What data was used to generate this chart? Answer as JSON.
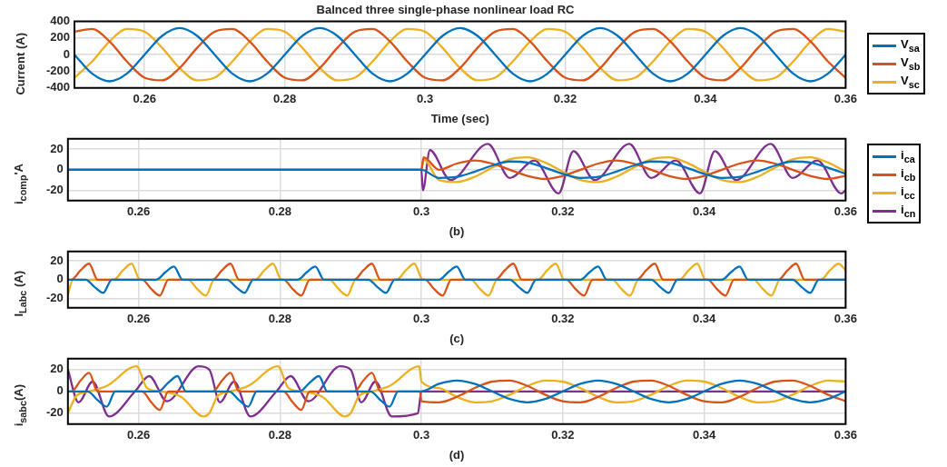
{
  "chart_data": [
    {
      "type": "line",
      "title": "Balnced three single-phase nonlinear load RC",
      "xlabel": "Time (sec)",
      "ylabel": "Current (A)",
      "x": [
        0.25,
        0.2525,
        0.255,
        0.2575,
        0.26,
        0.2625,
        0.265,
        0.2675,
        0.27,
        0.2725,
        0.275,
        0.2775,
        0.28,
        0.2825,
        0.285,
        0.2875,
        0.29,
        0.2925,
        0.295,
        0.2975,
        0.3,
        0.3025,
        0.305,
        0.3075,
        0.31,
        0.3125,
        0.315,
        0.3175,
        0.32,
        0.3225,
        0.325,
        0.3275,
        0.33,
        0.3325,
        0.335,
        0.3375,
        0.34,
        0.3425,
        0.345,
        0.3475,
        0.35,
        0.3525,
        0.355,
        0.3575,
        0.36
      ],
      "series": [
        {
          "name": "V$_{sa}$",
          "color": "#0072bd",
          "values": [
            0,
            -226,
            -320,
            -226,
            0,
            226,
            320,
            226,
            0,
            -226,
            -320,
            -226,
            0,
            226,
            320,
            226,
            0,
            -226,
            -320,
            -226,
            0,
            226,
            320,
            226,
            0,
            -226,
            -320,
            -226,
            0,
            226,
            320,
            226,
            0,
            -226,
            -320,
            -226,
            0,
            226,
            320,
            226,
            0,
            -226,
            -320,
            -226,
            0
          ]
        },
        {
          "name": "V$_{sb}$",
          "color": "#d95319",
          "values": [
            277,
            309,
            160,
            -83,
            -277,
            -309,
            -160,
            83,
            277,
            309,
            160,
            -83,
            -277,
            -309,
            -160,
            83,
            277,
            309,
            160,
            -83,
            -277,
            -309,
            -160,
            83,
            277,
            309,
            160,
            -83,
            -277,
            -309,
            -160,
            83,
            277,
            309,
            160,
            -83,
            -277,
            -309,
            -160,
            83,
            277,
            309,
            160,
            -83,
            -277
          ]
        },
        {
          "name": "V$_{sc}$",
          "color": "#edb120",
          "values": [
            -277,
            -83,
            160,
            309,
            277,
            83,
            -160,
            -309,
            -277,
            -83,
            160,
            309,
            277,
            83,
            -160,
            -309,
            -277,
            -83,
            160,
            309,
            277,
            83,
            -160,
            -309,
            -277,
            -83,
            160,
            309,
            277,
            83,
            -160,
            -309,
            -277,
            -83,
            160,
            309,
            277,
            83,
            -160,
            -309,
            -277,
            -83,
            160,
            309,
            277
          ]
        }
      ],
      "xlim": [
        0.25,
        0.36
      ],
      "xticks": [
        0.26,
        0.28,
        0.3,
        0.32,
        0.34,
        0.36
      ],
      "ylim": [
        -400,
        400
      ],
      "yticks": [
        -400,
        -200,
        0,
        200,
        400
      ],
      "grid": true,
      "legend": "right"
    },
    {
      "type": "line",
      "xlabel": "(b)",
      "ylabel": "i$_{comp}$'A",
      "series": [
        {
          "name": "i$_{ca}$",
          "color": "#0072bd",
          "x": [
            0.25,
            0.3,
            0.3025,
            0.305,
            0.3075,
            0.31,
            0.3125,
            0.315,
            0.3175,
            0.32,
            0.3225,
            0.325,
            0.3275,
            0.33,
            0.3325,
            0.335,
            0.3375,
            0.34,
            0.3425,
            0.345,
            0.3475,
            0.35,
            0.3525,
            0.355,
            0.3575,
            0.36
          ],
          "values": [
            0,
            0,
            -8,
            -7,
            -2,
            4,
            8,
            7,
            2,
            -4,
            -8,
            -7,
            -2,
            4,
            8,
            7,
            2,
            -4,
            -8,
            -7,
            -2,
            4,
            8,
            7,
            2,
            -4
          ]
        },
        {
          "name": "i$_{cb}$",
          "color": "#d95319",
          "x": [
            0.25,
            0.3,
            0.3003,
            0.3025,
            0.305,
            0.3075,
            0.31,
            0.3125,
            0.315,
            0.3175,
            0.32,
            0.3225,
            0.325,
            0.3275,
            0.33,
            0.3325,
            0.335,
            0.3375,
            0.34,
            0.3425,
            0.345,
            0.3475,
            0.35,
            0.3525,
            0.355,
            0.3575,
            0.36
          ],
          "values": [
            0,
            0,
            12,
            0,
            6,
            9,
            6,
            0,
            -6,
            -9,
            -6,
            0,
            6,
            9,
            6,
            0,
            -6,
            -9,
            -6,
            0,
            6,
            9,
            6,
            0,
            -6,
            -9,
            -6
          ]
        },
        {
          "name": "i$_{cc}$",
          "color": "#edb120",
          "x": [
            0.25,
            0.3,
            0.3003,
            0.3025,
            0.305,
            0.3075,
            0.31,
            0.3125,
            0.315,
            0.3175,
            0.32,
            0.3225,
            0.325,
            0.3275,
            0.33,
            0.3325,
            0.335,
            0.3375,
            0.34,
            0.3425,
            0.345,
            0.3475,
            0.35,
            0.3525,
            0.355,
            0.3575,
            0.36
          ],
          "values": [
            0,
            0,
            10,
            -10,
            -12,
            -7,
            2,
            10,
            12,
            7,
            -2,
            -10,
            -12,
            -7,
            2,
            10,
            12,
            7,
            -2,
            -10,
            -12,
            -7,
            2,
            10,
            12,
            7,
            -2
          ]
        },
        {
          "name": "i$_{cn}$",
          "color": "#7e2f8e",
          "x": [
            0.25,
            0.3,
            0.3002,
            0.3012,
            0.3041,
            0.3094,
            0.3125,
            0.316,
            0.3194,
            0.3215,
            0.3245,
            0.3294,
            0.3325,
            0.336,
            0.3394,
            0.3415,
            0.3445,
            0.3494,
            0.3525,
            0.356,
            0.3594,
            0.36
          ],
          "values": [
            0,
            0,
            -20,
            19,
            -10,
            25,
            -8,
            9,
            -23,
            18,
            -10,
            25,
            -8,
            9,
            -23,
            18,
            -10,
            25,
            -8,
            9,
            -23,
            -20
          ]
        }
      ],
      "xlim": [
        0.25,
        0.36
      ],
      "xticks": [
        0.26,
        0.28,
        0.3,
        0.32,
        0.34,
        0.36
      ],
      "ylim": [
        -30,
        30
      ],
      "yticks": [
        -20,
        0,
        20
      ],
      "grid": true,
      "legend": "right"
    },
    {
      "type": "line",
      "xlabel": "(c)",
      "ylabel": "I$_{Labc}$ (A)",
      "series": [
        {
          "color": "#0072bd",
          "x": [
            0.25,
            0.2525,
            0.2538,
            0.255,
            0.2562,
            0.2625,
            0.2638,
            0.265,
            0.2662,
            0.2725,
            0.2738,
            0.275,
            0.2762,
            0.2825,
            0.2838,
            0.285,
            0.2862,
            0.2925,
            0.2938,
            0.295,
            0.2962,
            0.3025,
            0.3038,
            0.305,
            0.3062,
            0.3125,
            0.3138,
            0.315,
            0.3162,
            0.3225,
            0.3238,
            0.325,
            0.3262,
            0.3325,
            0.3338,
            0.335,
            0.3362,
            0.3425,
            0.3438,
            0.345,
            0.3462,
            0.3525,
            0.3538,
            0.355,
            0.3562,
            0.36
          ],
          "values": [
            0,
            0,
            -8,
            -14,
            0,
            0,
            8,
            14,
            0,
            0,
            -8,
            -14,
            0,
            0,
            8,
            14,
            0,
            0,
            -8,
            -14,
            0,
            0,
            8,
            14,
            0,
            0,
            -8,
            -14,
            0,
            0,
            8,
            14,
            0,
            0,
            -8,
            -14,
            0,
            0,
            8,
            14,
            0,
            0,
            -8,
            -14,
            0,
            0
          ]
        },
        {
          "color": "#d95319",
          "x": [
            0.25,
            0.2505,
            0.2518,
            0.253,
            0.2542,
            0.2605,
            0.2618,
            0.263,
            0.2642,
            0.2705,
            0.2718,
            0.273,
            0.2742,
            0.2805,
            0.2818,
            0.283,
            0.2842,
            0.2905,
            0.2918,
            0.293,
            0.2942,
            0.3005,
            0.3018,
            0.303,
            0.3042,
            0.3105,
            0.3118,
            0.313,
            0.3142,
            0.3205,
            0.3218,
            0.323,
            0.3242,
            0.3305,
            0.3318,
            0.333,
            0.3342,
            0.3405,
            0.3418,
            0.343,
            0.3442,
            0.3505,
            0.3518,
            0.353,
            0.3542,
            0.36
          ],
          "values": [
            0,
            0,
            10,
            17,
            0,
            0,
            -10,
            -17,
            0,
            0,
            10,
            17,
            0,
            0,
            -10,
            -17,
            0,
            0,
            10,
            17,
            0,
            0,
            -10,
            -17,
            0,
            0,
            10,
            17,
            0,
            0,
            -10,
            -17,
            0,
            0,
            10,
            17,
            0,
            0,
            -10,
            -17,
            0,
            0,
            10,
            17,
            0,
            0
          ]
        },
        {
          "color": "#edb120",
          "x": [
            0.25,
            0.2507,
            0.2565,
            0.2578,
            0.259,
            0.2602,
            0.267,
            0.2683,
            0.2695,
            0.2707,
            0.2765,
            0.2778,
            0.279,
            0.2802,
            0.287,
            0.2883,
            0.2895,
            0.2907,
            0.2965,
            0.2978,
            0.299,
            0.3002,
            0.307,
            0.3083,
            0.3095,
            0.3107,
            0.3165,
            0.3178,
            0.319,
            0.3202,
            0.327,
            0.3283,
            0.3295,
            0.3307,
            0.3365,
            0.3378,
            0.339,
            0.3402,
            0.347,
            0.3483,
            0.3495,
            0.3507,
            0.3565,
            0.3578,
            0.359,
            0.36
          ],
          "values": [
            -16,
            0,
            0,
            10,
            17,
            0,
            0,
            -10,
            -17,
            0,
            0,
            10,
            17,
            0,
            0,
            -10,
            -17,
            0,
            0,
            10,
            17,
            0,
            0,
            -10,
            -17,
            0,
            0,
            10,
            17,
            0,
            0,
            -10,
            -17,
            0,
            0,
            10,
            17,
            0,
            0,
            -10,
            -17,
            0,
            0,
            10,
            17,
            10
          ]
        }
      ],
      "xlim": [
        0.25,
        0.36
      ],
      "xticks": [
        0.26,
        0.28,
        0.3,
        0.32,
        0.34,
        0.36
      ],
      "ylim": [
        -30,
        30
      ],
      "yticks": [
        -20,
        0,
        20
      ],
      "grid": true
    },
    {
      "type": "line",
      "xlabel": "(d)",
      "ylabel": "i$_{sabc}$(A)",
      "series": [
        {
          "color": "#0072bd",
          "x": [
            0.25,
            0.2528,
            0.2542,
            0.2555,
            0.2567,
            0.2628,
            0.2642,
            0.2655,
            0.2667,
            0.2728,
            0.2742,
            0.2755,
            0.2767,
            0.2828,
            0.2842,
            0.2855,
            0.2867,
            0.2928,
            0.2942,
            0.2955,
            0.2967,
            0.3,
            0.3025,
            0.305,
            0.3075,
            0.31,
            0.3125,
            0.315,
            0.3175,
            0.32,
            0.3225,
            0.325,
            0.3275,
            0.33,
            0.3325,
            0.335,
            0.3375,
            0.34,
            0.3425,
            0.345,
            0.3475,
            0.35,
            0.3525,
            0.355,
            0.3575,
            0.36
          ],
          "values": [
            0,
            0,
            -8,
            -14,
            0,
            0,
            8,
            14,
            0,
            0,
            -8,
            -14,
            0,
            0,
            8,
            14,
            0,
            0,
            -8,
            -14,
            0,
            0,
            7,
            10,
            7,
            0,
            -7,
            -10,
            -7,
            0,
            7,
            10,
            7,
            0,
            -7,
            -10,
            -7,
            0,
            7,
            10,
            7,
            0,
            -7,
            -10,
            -7,
            0
          ]
        },
        {
          "color": "#d95319",
          "x": [
            0.25,
            0.2505,
            0.2518,
            0.253,
            0.2542,
            0.2605,
            0.2618,
            0.263,
            0.2642,
            0.2705,
            0.2718,
            0.273,
            0.2742,
            0.2805,
            0.2818,
            0.283,
            0.2842,
            0.2905,
            0.2918,
            0.293,
            0.2942,
            0.2998,
            0.3,
            0.3025,
            0.305,
            0.3075,
            0.31,
            0.3125,
            0.315,
            0.3175,
            0.32,
            0.3225,
            0.325,
            0.3275,
            0.33,
            0.3325,
            0.335,
            0.3375,
            0.34,
            0.3425,
            0.345,
            0.3475,
            0.35,
            0.3525,
            0.355,
            0.3575,
            0.36
          ],
          "values": [
            0,
            0,
            10,
            17,
            0,
            0,
            -10,
            -17,
            0,
            0,
            10,
            17,
            0,
            0,
            -10,
            -17,
            0,
            0,
            10,
            17,
            0,
            0,
            -9,
            -10,
            -5,
            3,
            9,
            10,
            5,
            -3,
            -9,
            -10,
            -5,
            3,
            9,
            10,
            5,
            -3,
            -9,
            -10,
            -5,
            3,
            9,
            10,
            5,
            -3,
            -9
          ]
        },
        {
          "color": "#edb120",
          "x": [
            0.25,
            0.2512,
            0.253,
            0.2555,
            0.2597,
            0.2612,
            0.263,
            0.266,
            0.2692,
            0.27,
            0.2712,
            0.273,
            0.2755,
            0.2797,
            0.2812,
            0.283,
            0.286,
            0.2892,
            0.29,
            0.2912,
            0.293,
            0.2955,
            0.2997,
            0.3,
            0.3025,
            0.305,
            0.3075,
            0.31,
            0.3125,
            0.315,
            0.3175,
            0.32,
            0.3225,
            0.325,
            0.3275,
            0.33,
            0.3325,
            0.335,
            0.3375,
            0.34,
            0.3425,
            0.345,
            0.3475,
            0.35,
            0.3525,
            0.355,
            0.3575,
            0.36
          ],
          "values": [
            -20,
            -4,
            0,
            5,
            23,
            3,
            0,
            -5,
            -23,
            -20,
            -4,
            0,
            5,
            23,
            3,
            0,
            -5,
            -23,
            -20,
            -4,
            0,
            5,
            23,
            9,
            3,
            -5,
            -10,
            -9,
            -3,
            5,
            10,
            9,
            3,
            -5,
            -10,
            -9,
            -3,
            5,
            10,
            9,
            3,
            -5,
            -10,
            -9,
            -3,
            5,
            10,
            9
          ]
        },
        {
          "color": "#7e2f8e",
          "x": [
            0.25,
            0.2515,
            0.2535,
            0.2558,
            0.2595,
            0.2615,
            0.264,
            0.2685,
            0.27,
            0.2715,
            0.2735,
            0.2758,
            0.2795,
            0.2815,
            0.284,
            0.2885,
            0.29,
            0.2915,
            0.2935,
            0.2958,
            0.2995,
            0.3,
            0.36
          ],
          "values": [
            20,
            -10,
            9,
            -23,
            0,
            14,
            -9,
            23,
            20,
            -10,
            9,
            -23,
            0,
            14,
            -9,
            23,
            20,
            -10,
            9,
            -23,
            -20,
            0,
            0
          ]
        }
      ],
      "xlim": [
        0.25,
        0.36
      ],
      "xticks": [
        0.26,
        0.28,
        0.3,
        0.32,
        0.34,
        0.36
      ],
      "ylim": [
        -30,
        30
      ],
      "yticks": [
        -20,
        0,
        20
      ],
      "grid": true
    }
  ]
}
